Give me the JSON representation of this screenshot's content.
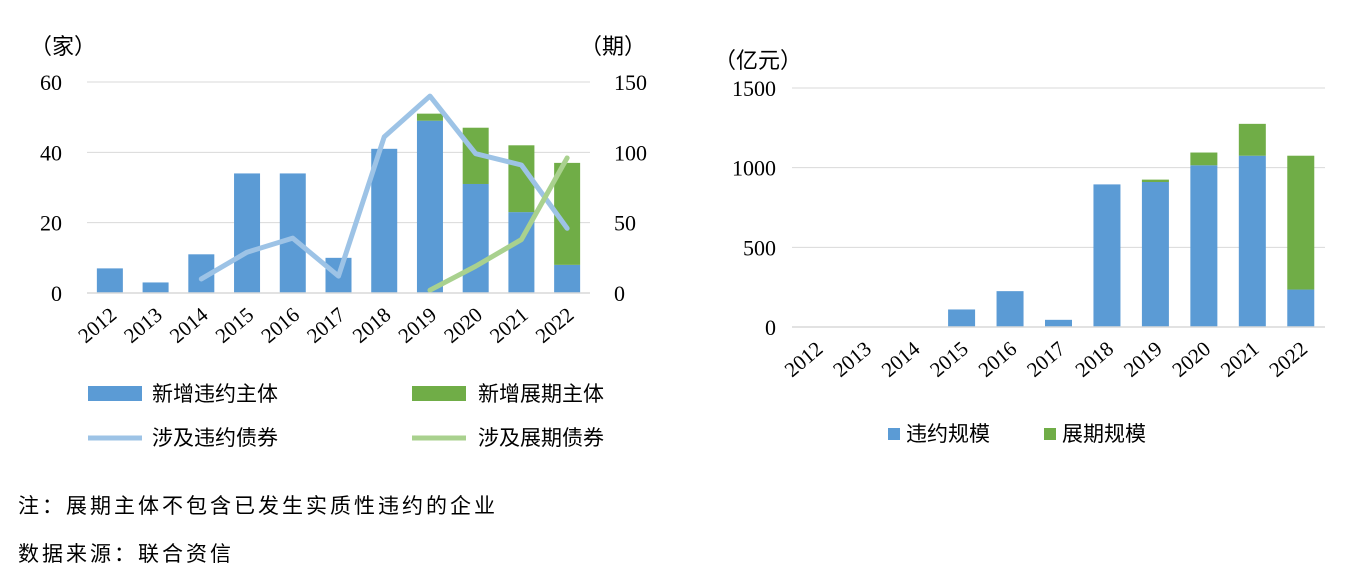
{
  "colors": {
    "default_bar": "#5B9BD5",
    "extension_bar": "#70AD47",
    "default_line": "#9DC3E6",
    "extension_line": "#A9D18E",
    "grid": "#D9D9D9"
  },
  "notes": {
    "note": "注：展期主体不包含已发生实质性违约的企业",
    "source": "数据来源：联合资信"
  },
  "chart_data": [
    {
      "type": "bar",
      "stacked": true,
      "title": "",
      "ylabel_left": "（家）",
      "ylabel_right": "（期）",
      "categories": [
        "2012",
        "2013",
        "2014",
        "2015",
        "2016",
        "2017",
        "2018",
        "2019",
        "2020",
        "2021",
        "2022"
      ],
      "ylim": [
        0,
        60
      ],
      "yticks": [
        0,
        20,
        40,
        60
      ],
      "ylim_right": [
        0,
        150
      ],
      "yticks_right": [
        0,
        50,
        100,
        150
      ],
      "grid": true,
      "legend_position": "bottom",
      "series": [
        {
          "name": "新增违约主体",
          "type": "bar",
          "axis": "left",
          "values": [
            7,
            3,
            11,
            34,
            34,
            10,
            41,
            49,
            31,
            23,
            8
          ]
        },
        {
          "name": "新增展期主体",
          "type": "bar",
          "axis": "left",
          "values": [
            0,
            0,
            0,
            0,
            0,
            0,
            0,
            2,
            16,
            19,
            29
          ]
        },
        {
          "name": "涉及违约债券",
          "type": "line",
          "axis": "right",
          "values": [
            null,
            null,
            10,
            29,
            39,
            12,
            111,
            140,
            99,
            91,
            46
          ]
        },
        {
          "name": "涉及展期债券",
          "type": "line",
          "axis": "right",
          "values": [
            null,
            null,
            null,
            null,
            null,
            null,
            null,
            2,
            19,
            38,
            96
          ]
        }
      ]
    },
    {
      "type": "bar",
      "stacked": true,
      "title": "",
      "ylabel": "（亿元）",
      "categories": [
        "2012",
        "2013",
        "2014",
        "2015",
        "2016",
        "2017",
        "2018",
        "2019",
        "2020",
        "2021",
        "2022"
      ],
      "ylim": [
        0,
        1500
      ],
      "yticks": [
        0,
        500,
        1000,
        1500
      ],
      "grid": true,
      "legend_position": "bottom",
      "series": [
        {
          "name": "违约规模",
          "values": [
            0,
            0,
            0,
            110,
            225,
            45,
            895,
            910,
            1015,
            1075,
            235
          ]
        },
        {
          "name": "展期规模",
          "values": [
            0,
            0,
            0,
            0,
            0,
            0,
            0,
            15,
            80,
            200,
            840
          ]
        }
      ]
    }
  ]
}
